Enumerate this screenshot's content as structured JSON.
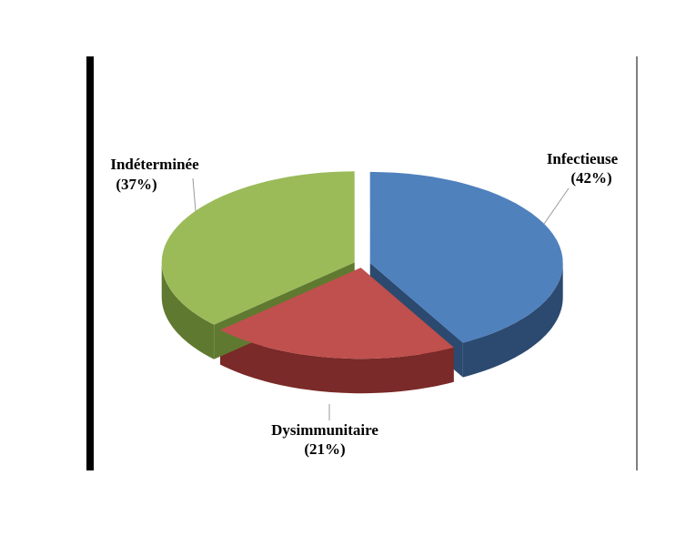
{
  "chart_data": {
    "type": "pie",
    "categories": [
      "Infectieuse",
      "Dysimmunitaire",
      "Indéterminée"
    ],
    "values": [
      42,
      21,
      37
    ],
    "value_labels": [
      "(42%)",
      "(21%)",
      "(37%)"
    ],
    "colors": [
      "#4f81bd",
      "#c0504d",
      "#9bbb59"
    ],
    "side_colors": [
      "#2c4a70",
      "#7a2a28",
      "#5f7a30"
    ],
    "explode": true
  }
}
